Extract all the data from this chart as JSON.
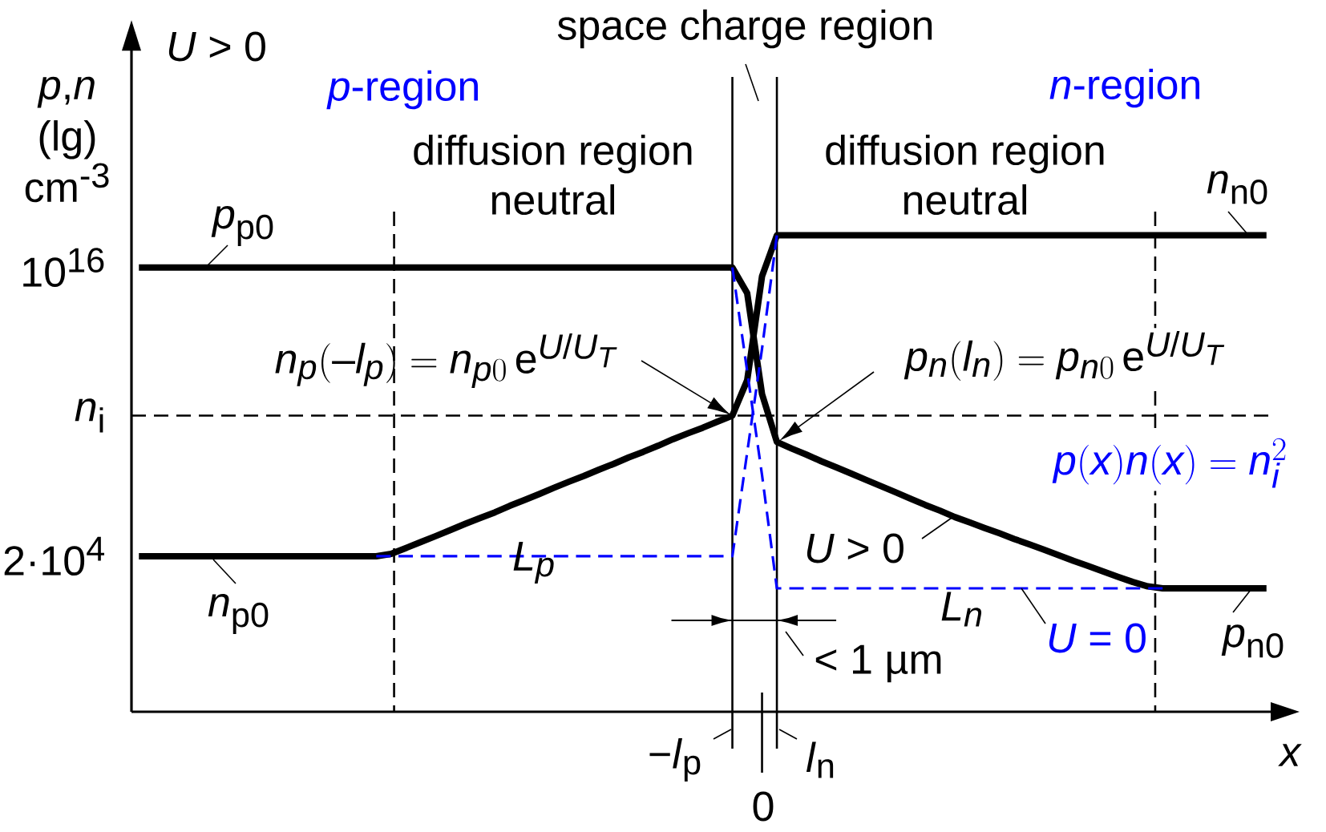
{
  "chart_data": {
    "type": "line",
    "ylabel": "*p*,*n* (lg) cm$^{-3}$",
    "xlabel": "*x*",
    "log": true,
    "categories": [
      null,
      null,
      null,
      null,
      null,
      null,
      null,
      null,
      null,
      null,
      null,
      null,
      null,
      null,
      null,
      null,
      null,
      null,
      null,
      null,
      null,
      null,
      null,
      null,
      null,
      null,
      null,
      null,
      null,
      null,
      null,
      null,
      null,
      null,
      null,
      null,
      null,
      null,
      null,
      null,
      null,
      null,
      null,
      null,
      null,
      null,
      null,
      null,
      null,
      null,
      null,
      null,
      null,
      null,
      null,
      null,
      null,
      null,
      null,
      null,
      null,
      null,
      null,
      null,
      null,
      null,
      null,
      null,
      null,
      null,
      null,
      null,
      null,
      null,
      null,
      null,
      null
    ],
    "ylim": [
      0.01,
      2e+25
    ],
    "yticks": [
      {
        "value": 20000.0,
        "label": "2·10$^{4}$"
      },
      {
        "value": 10000000000.0,
        "label": "*n*$_{i}$"
      },
      {
        "value": 1e+16,
        "label": "10$^{16}$"
      }
    ],
    "series": [
      {
        "color": "#000000",
        "line_style": "solid",
        "values": [
          20000.0,
          20000.0,
          20000.0,
          20000.0,
          20000.0,
          20000.0,
          20000.0,
          20000.0,
          20000.0,
          20000.0,
          20000.0,
          20000.0,
          20000.0,
          20000.0,
          20000.0,
          20000.0,
          20000.0,
          25000.0,
          43000.0,
          75000.0,
          130000.0,
          230000.0,
          410000.0,
          710000.0,
          1200000.0,
          2200000.0,
          3800000.0,
          6700000.0,
          12000000.0,
          21000000.0,
          36000000.0,
          64000000.0,
          110000000.0,
          200000000.0,
          340000000.0,
          600000000.0,
          1100000000.0,
          1900000000.0,
          3200000000.0,
          5700000000.0,
          10000000000.0,
          270000000000.0,
          4400000000000000.0,
          2e+17,
          2e+17,
          2e+17,
          2e+17,
          2e+17,
          2e+17,
          2e+17,
          2e+17,
          2e+17,
          2e+17,
          2e+17,
          2e+17,
          2e+17,
          2e+17,
          2e+17,
          2e+17,
          2e+17,
          2e+17,
          2e+17,
          2e+17,
          2e+17,
          2e+17,
          2e+17,
          2e+17,
          2e+17,
          2e+17,
          2e+17,
          2e+17,
          2e+17,
          2e+17,
          2e+17,
          2e+17,
          2e+17,
          2e+17
        ]
      },
      {
        "color": "#000000",
        "line_style": "solid",
        "values": [
          1e+16,
          1e+16,
          1e+16,
          1e+16,
          1e+16,
          1e+16,
          1e+16,
          1e+16,
          1e+16,
          1e+16,
          1e+16,
          1e+16,
          1e+16,
          1e+16,
          1e+16,
          1e+16,
          1e+16,
          1e+16,
          1e+16,
          1e+16,
          1e+16,
          1e+16,
          1e+16,
          1e+16,
          1e+16,
          1e+16,
          1e+16,
          1e+16,
          1e+16,
          1e+16,
          1e+16,
          1e+16,
          1e+16,
          1e+16,
          1e+16,
          1e+16,
          1e+16,
          1e+16,
          1e+16,
          1e+16,
          1e+16,
          900000000000000.0,
          74000000000.0,
          850000000.0,
          460000000.0,
          260000000.0,
          140000000.0,
          80000000.0,
          45000000.0,
          25000000.0,
          14000000.0,
          7800000.0,
          4300000.0,
          2400000.0,
          1400000.0,
          770000.0,
          470000.0,
          280000.0,
          170000.0,
          100000.0,
          61000.0,
          37000.0,
          22000.0,
          13000.0,
          8000.0,
          4800.0,
          2900.0,
          1800.0,
          1200.0,
          1000.0,
          1000.0,
          1000.0,
          1000.0,
          1000.0,
          1000.0,
          1000.0,
          1000.0
        ]
      },
      {
        "color": "#0000ff",
        "line_style": "dashed",
        "values": [
          null,
          null,
          null,
          null,
          null,
          null,
          null,
          null,
          null,
          null,
          null,
          null,
          null,
          null,
          null,
          null,
          20000.0,
          20000.0,
          20000.0,
          20000.0,
          20000.0,
          20000.0,
          20000.0,
          20000.0,
          20000.0,
          20000.0,
          20000.0,
          20000.0,
          20000.0,
          20000.0,
          20000.0,
          20000.0,
          20000.0,
          20000.0,
          20000.0,
          20000.0,
          20000.0,
          20000.0,
          20000.0,
          20000.0,
          20000.0,
          320000000.0,
          5100000000000.0,
          2e+17,
          null,
          null,
          null,
          null,
          null,
          null,
          null,
          null,
          null,
          null,
          null,
          null,
          null,
          null,
          null,
          null,
          null,
          null,
          null,
          null,
          null,
          null,
          null,
          null,
          null,
          null,
          null,
          null,
          null,
          null,
          null,
          null,
          null
        ]
      },
      {
        "color": "#0000ff",
        "line_style": "dashed",
        "values": [
          null,
          null,
          null,
          null,
          null,
          null,
          null,
          null,
          null,
          null,
          null,
          null,
          null,
          null,
          null,
          null,
          null,
          null,
          null,
          null,
          null,
          null,
          null,
          null,
          null,
          null,
          null,
          null,
          null,
          null,
          null,
          null,
          null,
          null,
          null,
          null,
          null,
          null,
          null,
          null,
          1e+16,
          620000000000.0,
          39000000.0,
          1000.0,
          1000.0,
          1000.0,
          1000.0,
          1000.0,
          1000.0,
          1000.0,
          1000.0,
          1000.0,
          1000.0,
          1000.0,
          1000.0,
          1000.0,
          1000.0,
          1000.0,
          1000.0,
          1000.0,
          1000.0,
          1000.0,
          1000.0,
          1000.0,
          1000.0,
          1000.0,
          1000.0,
          1000.0,
          1000.0,
          1000.0,
          null,
          null,
          null,
          null,
          null,
          null,
          null
        ]
      }
    ],
    "ref_lines": [
      {
        "axis": "y",
        "value": 10000000000.0,
        "color": "#000000",
        "line_style": "dashed"
      }
    ],
    "annotations": [
      "*U* > 0",
      "space charge region",
      "*p*-region",
      "*n*-region",
      "diffusion region neutral",
      "diffusion region neutral",
      "*p*$_{p0}$",
      "*n*$_{n0}$",
      "*n*$_{p0}$",
      "*p*$_{n0}$",
      "n_p(-l_p) = n_{p0}\\,\\mathrm{e}^{U/U_T}",
      "p_n(l_n) = p_{n0}\\,\\mathrm{e}^{U/U_T}",
      "p(x)n(x) = n_i^2",
      "*U* > 0",
      "L_p",
      "L_n",
      "*U* = 0",
      "< 1 µm",
      "−*l*$_{p}$",
      "0",
      "*l*$_{n}$"
    ]
  }
}
